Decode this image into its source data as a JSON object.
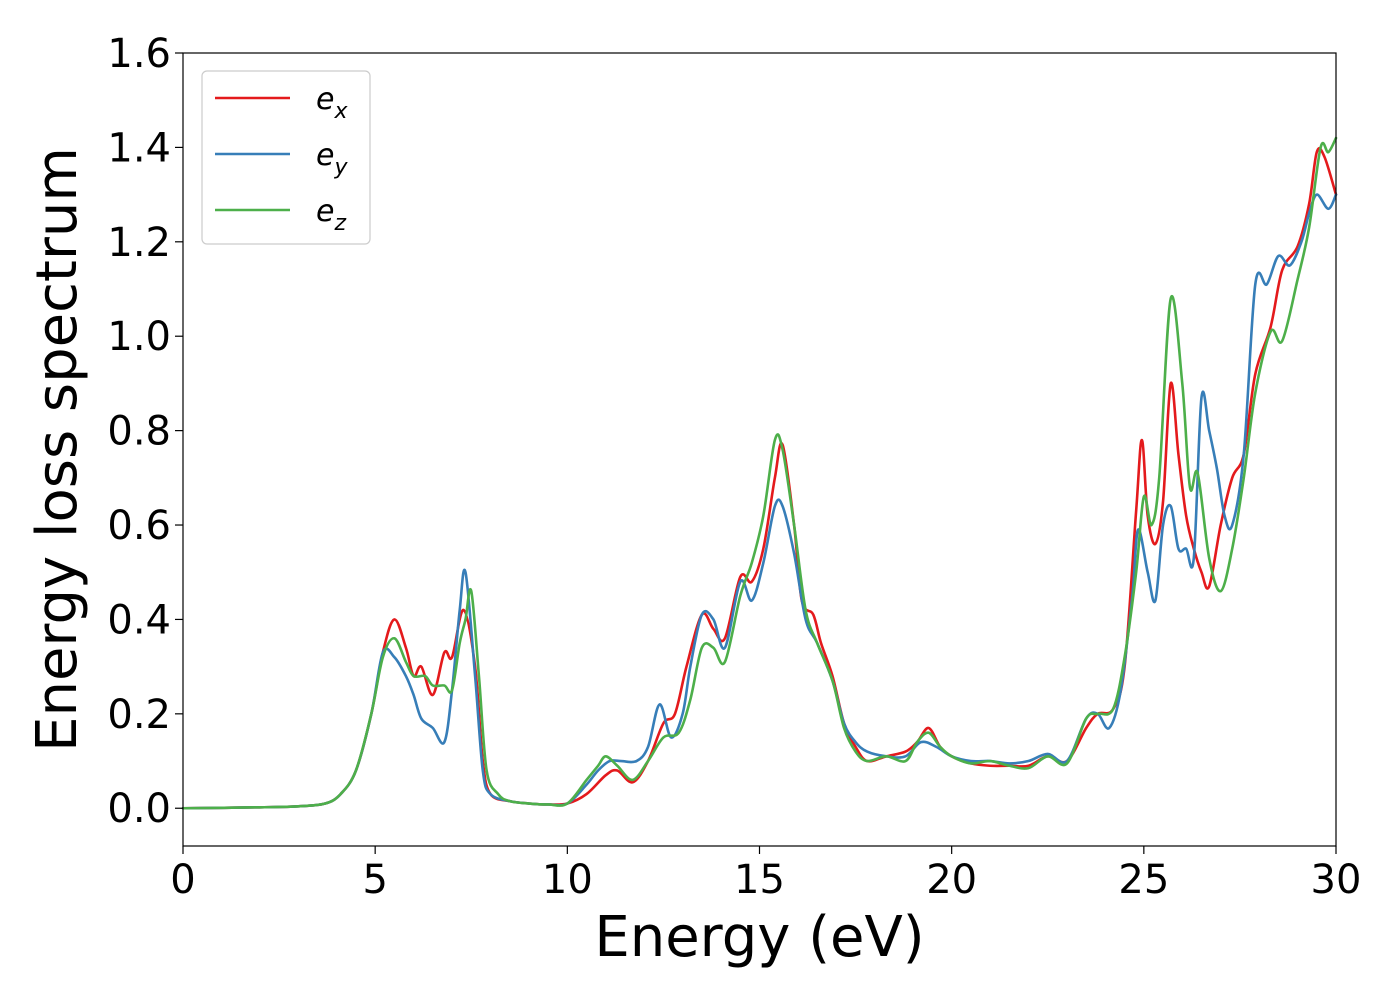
{
  "chart_data": {
    "type": "line",
    "xlabel": "Energy (eV)",
    "ylabel": "Energy loss spectrum",
    "xlim": [
      0,
      30
    ],
    "ylim": [
      -0.08,
      1.6
    ],
    "xticks": [
      0,
      5,
      10,
      15,
      20,
      25,
      30
    ],
    "xtick_labels": [
      "0",
      "5",
      "10",
      "15",
      "20",
      "25",
      "30"
    ],
    "yticks": [
      0.0,
      0.2,
      0.4,
      0.6,
      0.8,
      1.0,
      1.2,
      1.4,
      1.6
    ],
    "ytick_labels": [
      "0.0",
      "0.2",
      "0.4",
      "0.6",
      "0.8",
      "1.0",
      "1.2",
      "1.4",
      "1.6"
    ],
    "grid": false,
    "legend_position": "top-left",
    "series": [
      {
        "name": "e_x",
        "label_base": "e",
        "label_sub": "x",
        "color": "#e41a1c",
        "points": [
          [
            0,
            0
          ],
          [
            2,
            0.002
          ],
          [
            3,
            0.004
          ],
          [
            3.7,
            0.01
          ],
          [
            4.1,
            0.03
          ],
          [
            4.5,
            0.08
          ],
          [
            4.9,
            0.2
          ],
          [
            5.2,
            0.33
          ],
          [
            5.5,
            0.4
          ],
          [
            5.8,
            0.34
          ],
          [
            6,
            0.28
          ],
          [
            6.2,
            0.3
          ],
          [
            6.5,
            0.24
          ],
          [
            6.8,
            0.33
          ],
          [
            7,
            0.32
          ],
          [
            7.3,
            0.42
          ],
          [
            7.6,
            0.3
          ],
          [
            7.8,
            0.1
          ],
          [
            8,
            0.03
          ],
          [
            8.5,
            0.015
          ],
          [
            9,
            0.01
          ],
          [
            9.5,
            0.008
          ],
          [
            10,
            0.01
          ],
          [
            10.5,
            0.03
          ],
          [
            11,
            0.07
          ],
          [
            11.3,
            0.08
          ],
          [
            11.7,
            0.055
          ],
          [
            12.1,
            0.1
          ],
          [
            12.5,
            0.18
          ],
          [
            12.8,
            0.2
          ],
          [
            13.1,
            0.3
          ],
          [
            13.5,
            0.41
          ],
          [
            13.8,
            0.38
          ],
          [
            14.1,
            0.36
          ],
          [
            14.5,
            0.49
          ],
          [
            14.8,
            0.48
          ],
          [
            15.1,
            0.55
          ],
          [
            15.4,
            0.7
          ],
          [
            15.6,
            0.77
          ],
          [
            15.9,
            0.6
          ],
          [
            16.1,
            0.44
          ],
          [
            16.4,
            0.41
          ],
          [
            16.6,
            0.35
          ],
          [
            16.9,
            0.28
          ],
          [
            17.2,
            0.18
          ],
          [
            17.5,
            0.13
          ],
          [
            17.8,
            0.1
          ],
          [
            18.3,
            0.11
          ],
          [
            18.8,
            0.12
          ],
          [
            19.1,
            0.14
          ],
          [
            19.4,
            0.17
          ],
          [
            19.7,
            0.13
          ],
          [
            20,
            0.11
          ],
          [
            20.5,
            0.095
          ],
          [
            21,
            0.09
          ],
          [
            21.5,
            0.09
          ],
          [
            22,
            0.09
          ],
          [
            22.5,
            0.11
          ],
          [
            23,
            0.1
          ],
          [
            23.5,
            0.17
          ],
          [
            23.8,
            0.2
          ],
          [
            24.2,
            0.21
          ],
          [
            24.5,
            0.3
          ],
          [
            24.8,
            0.63
          ],
          [
            24.95,
            0.78
          ],
          [
            25.1,
            0.62
          ],
          [
            25.3,
            0.56
          ],
          [
            25.5,
            0.65
          ],
          [
            25.7,
            0.9
          ],
          [
            25.9,
            0.75
          ],
          [
            26.1,
            0.62
          ],
          [
            26.3,
            0.55
          ],
          [
            26.5,
            0.5
          ],
          [
            26.7,
            0.47
          ],
          [
            27,
            0.6
          ],
          [
            27.3,
            0.7
          ],
          [
            27.6,
            0.75
          ],
          [
            27.9,
            0.92
          ],
          [
            28.3,
            1.02
          ],
          [
            28.6,
            1.14
          ],
          [
            29,
            1.19
          ],
          [
            29.3,
            1.28
          ],
          [
            29.5,
            1.39
          ],
          [
            29.7,
            1.38
          ],
          [
            30,
            1.3
          ]
        ]
      },
      {
        "name": "e_y",
        "label_base": "e",
        "label_sub": "y",
        "color": "#377eb8",
        "points": [
          [
            0,
            0
          ],
          [
            2,
            0.002
          ],
          [
            3,
            0.004
          ],
          [
            3.7,
            0.01
          ],
          [
            4.1,
            0.03
          ],
          [
            4.5,
            0.08
          ],
          [
            4.9,
            0.2
          ],
          [
            5.2,
            0.33
          ],
          [
            5.5,
            0.32
          ],
          [
            5.8,
            0.28
          ],
          [
            6,
            0.24
          ],
          [
            6.2,
            0.19
          ],
          [
            6.5,
            0.17
          ],
          [
            6.8,
            0.14
          ],
          [
            7,
            0.25
          ],
          [
            7.2,
            0.42
          ],
          [
            7.35,
            0.5
          ],
          [
            7.6,
            0.28
          ],
          [
            7.8,
            0.08
          ],
          [
            8,
            0.03
          ],
          [
            8.5,
            0.015
          ],
          [
            9,
            0.01
          ],
          [
            9.5,
            0.008
          ],
          [
            10,
            0.01
          ],
          [
            10.5,
            0.05
          ],
          [
            10.8,
            0.08
          ],
          [
            11.1,
            0.1
          ],
          [
            11.4,
            0.1
          ],
          [
            11.8,
            0.1
          ],
          [
            12.1,
            0.13
          ],
          [
            12.4,
            0.22
          ],
          [
            12.7,
            0.15
          ],
          [
            13,
            0.2
          ],
          [
            13.2,
            0.3
          ],
          [
            13.5,
            0.41
          ],
          [
            13.8,
            0.4
          ],
          [
            14.1,
            0.34
          ],
          [
            14.5,
            0.48
          ],
          [
            14.8,
            0.44
          ],
          [
            15.1,
            0.52
          ],
          [
            15.4,
            0.64
          ],
          [
            15.6,
            0.64
          ],
          [
            15.9,
            0.54
          ],
          [
            16.2,
            0.4
          ],
          [
            16.5,
            0.35
          ],
          [
            16.9,
            0.27
          ],
          [
            17.2,
            0.18
          ],
          [
            17.5,
            0.14
          ],
          [
            17.8,
            0.12
          ],
          [
            18.3,
            0.11
          ],
          [
            18.8,
            0.11
          ],
          [
            19.2,
            0.14
          ],
          [
            19.6,
            0.13
          ],
          [
            20,
            0.11
          ],
          [
            20.5,
            0.1
          ],
          [
            21,
            0.1
          ],
          [
            21.5,
            0.095
          ],
          [
            22,
            0.1
          ],
          [
            22.5,
            0.115
          ],
          [
            23,
            0.1
          ],
          [
            23.5,
            0.19
          ],
          [
            23.8,
            0.2
          ],
          [
            24.1,
            0.17
          ],
          [
            24.4,
            0.25
          ],
          [
            24.7,
            0.45
          ],
          [
            24.85,
            0.59
          ],
          [
            25.1,
            0.5
          ],
          [
            25.3,
            0.44
          ],
          [
            25.5,
            0.6
          ],
          [
            25.7,
            0.64
          ],
          [
            25.9,
            0.55
          ],
          [
            26.1,
            0.55
          ],
          [
            26.3,
            0.53
          ],
          [
            26.5,
            0.87
          ],
          [
            26.7,
            0.8
          ],
          [
            26.9,
            0.72
          ],
          [
            27.1,
            0.62
          ],
          [
            27.3,
            0.6
          ],
          [
            27.6,
            0.75
          ],
          [
            27.9,
            1.11
          ],
          [
            28.2,
            1.11
          ],
          [
            28.5,
            1.17
          ],
          [
            28.8,
            1.15
          ],
          [
            29.1,
            1.2
          ],
          [
            29.3,
            1.26
          ],
          [
            29.5,
            1.3
          ],
          [
            29.8,
            1.27
          ],
          [
            30,
            1.3
          ]
        ]
      },
      {
        "name": "e_z",
        "label_base": "e",
        "label_sub": "z",
        "color": "#4daf4a",
        "points": [
          [
            0,
            0
          ],
          [
            2,
            0.002
          ],
          [
            3,
            0.004
          ],
          [
            3.7,
            0.01
          ],
          [
            4.1,
            0.03
          ],
          [
            4.5,
            0.08
          ],
          [
            4.9,
            0.2
          ],
          [
            5.2,
            0.32
          ],
          [
            5.5,
            0.36
          ],
          [
            5.8,
            0.31
          ],
          [
            6,
            0.28
          ],
          [
            6.3,
            0.28
          ],
          [
            6.5,
            0.26
          ],
          [
            6.8,
            0.26
          ],
          [
            7,
            0.25
          ],
          [
            7.2,
            0.35
          ],
          [
            7.35,
            0.4
          ],
          [
            7.5,
            0.46
          ],
          [
            7.7,
            0.28
          ],
          [
            7.9,
            0.08
          ],
          [
            8.2,
            0.03
          ],
          [
            8.5,
            0.015
          ],
          [
            9,
            0.01
          ],
          [
            9.5,
            0.008
          ],
          [
            10,
            0.01
          ],
          [
            10.5,
            0.06
          ],
          [
            10.8,
            0.09
          ],
          [
            11,
            0.11
          ],
          [
            11.3,
            0.09
          ],
          [
            11.7,
            0.06
          ],
          [
            12.1,
            0.1
          ],
          [
            12.5,
            0.15
          ],
          [
            12.9,
            0.16
          ],
          [
            13.2,
            0.23
          ],
          [
            13.5,
            0.34
          ],
          [
            13.8,
            0.34
          ],
          [
            14.1,
            0.31
          ],
          [
            14.5,
            0.45
          ],
          [
            14.8,
            0.52
          ],
          [
            15.1,
            0.62
          ],
          [
            15.4,
            0.78
          ],
          [
            15.6,
            0.76
          ],
          [
            15.9,
            0.6
          ],
          [
            16.2,
            0.42
          ],
          [
            16.5,
            0.35
          ],
          [
            16.9,
            0.27
          ],
          [
            17.2,
            0.17
          ],
          [
            17.5,
            0.12
          ],
          [
            17.8,
            0.1
          ],
          [
            18.3,
            0.11
          ],
          [
            18.8,
            0.1
          ],
          [
            19.1,
            0.14
          ],
          [
            19.4,
            0.16
          ],
          [
            19.7,
            0.13
          ],
          [
            20,
            0.11
          ],
          [
            20.5,
            0.095
          ],
          [
            21,
            0.1
          ],
          [
            21.5,
            0.09
          ],
          [
            22,
            0.085
          ],
          [
            22.5,
            0.11
          ],
          [
            23,
            0.095
          ],
          [
            23.5,
            0.19
          ],
          [
            23.8,
            0.2
          ],
          [
            24.2,
            0.21
          ],
          [
            24.5,
            0.32
          ],
          [
            24.8,
            0.5
          ],
          [
            25,
            0.66
          ],
          [
            25.2,
            0.6
          ],
          [
            25.4,
            0.7
          ],
          [
            25.7,
            1.08
          ],
          [
            26,
            0.9
          ],
          [
            26.2,
            0.68
          ],
          [
            26.4,
            0.71
          ],
          [
            26.7,
            0.53
          ],
          [
            27,
            0.46
          ],
          [
            27.3,
            0.55
          ],
          [
            27.6,
            0.7
          ],
          [
            27.9,
            0.88
          ],
          [
            28.3,
            1.01
          ],
          [
            28.6,
            0.99
          ],
          [
            29,
            1.12
          ],
          [
            29.3,
            1.23
          ],
          [
            29.6,
            1.4
          ],
          [
            29.8,
            1.39
          ],
          [
            30,
            1.42
          ]
        ]
      }
    ]
  }
}
